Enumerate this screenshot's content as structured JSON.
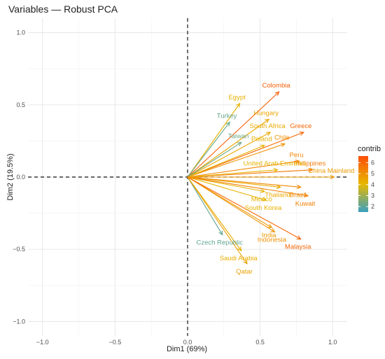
{
  "chart_data": {
    "type": "scatter",
    "subtype": "pca-variable-correlation-circle",
    "title": "Variables — Robust PCA",
    "xlabel": "Dim1 (69%)",
    "ylabel": "Dim2 (19.5%)",
    "xlim": [
      -1.1,
      1.1
    ],
    "ylim": [
      -1.1,
      1.1
    ],
    "xticks": [
      -1.0,
      -0.5,
      0.0,
      0.5,
      1.0
    ],
    "yticks": [
      -1.0,
      -0.5,
      0.0,
      0.5,
      1.0
    ],
    "xtick_labels": [
      "−1.0",
      "−0.5",
      "0.0",
      "0.5",
      "1.0"
    ],
    "ytick_labels": [
      "−1.0",
      "−0.5",
      "0.0",
      "0.5",
      "1.0"
    ],
    "grid": true,
    "reference_lines": {
      "x": 0,
      "y": 0,
      "style": "dashed"
    },
    "legend": {
      "title": "contrib",
      "placement": "right",
      "ticks": [
        2,
        3,
        4,
        5,
        6
      ],
      "range": [
        1.5,
        6.6
      ],
      "colors": [
        "#3aa0c0",
        "#e7b800",
        "#fc4e07"
      ]
    },
    "variables": [
      {
        "name": "Colombia",
        "x": 0.63,
        "y": 0.59,
        "contrib": 6.2
      },
      {
        "name": "Egypt",
        "x": 0.36,
        "y": 0.51,
        "contrib": 4.2
      },
      {
        "name": "Hungary",
        "x": 0.56,
        "y": 0.4,
        "contrib": 4.5
      },
      {
        "name": "Turkey",
        "x": 0.29,
        "y": 0.38,
        "contrib": 2.2
      },
      {
        "name": "South Africa",
        "x": 0.57,
        "y": 0.31,
        "contrib": 4.4
      },
      {
        "name": "Greece",
        "x": 0.8,
        "y": 0.31,
        "contrib": 6.0
      },
      {
        "name": "Taiwan",
        "x": 0.37,
        "y": 0.24,
        "contrib": 2.3
      },
      {
        "name": "Chile",
        "x": 0.67,
        "y": 0.23,
        "contrib": 5.0
      },
      {
        "name": "Poland",
        "x": 0.53,
        "y": 0.22,
        "contrib": 4.2
      },
      {
        "name": "Peru",
        "x": 0.77,
        "y": 0.11,
        "contrib": 5.2
      },
      {
        "name": "Philippines",
        "x": 0.86,
        "y": 0.05,
        "contrib": 5.6
      },
      {
        "name": "United Arab Emirates",
        "x": 0.62,
        "y": 0.05,
        "contrib": 4.2
      },
      {
        "name": "China Mainland",
        "x": 1.01,
        "y": 0.0,
        "contrib": 4.8
      },
      {
        "name": "Thailand",
        "x": 0.64,
        "y": -0.07,
        "contrib": 4.4
      },
      {
        "name": "Brazil",
        "x": 0.78,
        "y": -0.07,
        "contrib": 5.2
      },
      {
        "name": "Mexico",
        "x": 0.53,
        "y": -0.1,
        "contrib": 4.2
      },
      {
        "name": "Kuwait",
        "x": 0.83,
        "y": -0.13,
        "contrib": 5.4
      },
      {
        "name": "South Korea",
        "x": 0.54,
        "y": -0.16,
        "contrib": 4.2
      },
      {
        "name": "India",
        "x": 0.58,
        "y": -0.35,
        "contrib": 4.8
      },
      {
        "name": "Czech Republic",
        "x": 0.24,
        "y": -0.4,
        "contrib": 2.1
      },
      {
        "name": "Indonesia",
        "x": 0.6,
        "y": -0.38,
        "contrib": 5.0
      },
      {
        "name": "Malaysia",
        "x": 0.78,
        "y": -0.43,
        "contrib": 6.0
      },
      {
        "name": "Saudi Arabia",
        "x": 0.37,
        "y": -0.51,
        "contrib": 4.3
      },
      {
        "name": "Qatar",
        "x": 0.41,
        "y": -0.6,
        "contrib": 4.6
      }
    ]
  }
}
